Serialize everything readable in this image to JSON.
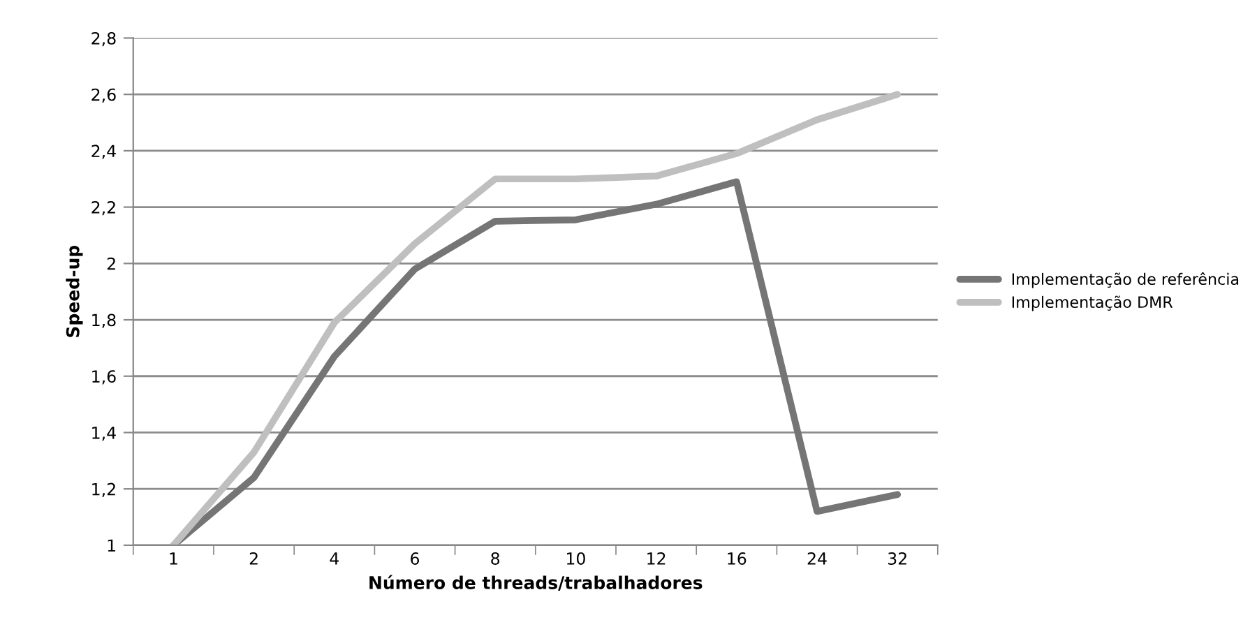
{
  "chart_data": {
    "type": "line",
    "xlabel": "Número de threads/trabalhadores",
    "ylabel": "Speed-up",
    "categories": [
      "1",
      "2",
      "4",
      "6",
      "8",
      "10",
      "12",
      "16",
      "24",
      "32"
    ],
    "series": [
      {
        "name": "Implementação de referência",
        "color": "#757575",
        "values": [
          1,
          1.24,
          1.67,
          1.98,
          2.15,
          2.155,
          2.21,
          2.29,
          1.12,
          1.18
        ]
      },
      {
        "name": "Implementação DMR",
        "color": "#bfbfbf",
        "values": [
          1,
          1.33,
          1.79,
          2.07,
          2.3,
          2.3,
          2.31,
          2.39,
          2.51,
          2.6
        ]
      }
    ],
    "ylim": [
      1,
      2.8
    ],
    "yticks": [
      1,
      {
        "value": 1.2,
        "label": "1,2"
      },
      {
        "value": 1.4,
        "label": "1,4"
      },
      {
        "value": 1.6,
        "label": "1,6"
      },
      {
        "value": 1.8,
        "label": "1,8"
      },
      2,
      {
        "value": 2.2,
        "label": "2,2"
      },
      {
        "value": 2.4,
        "label": "2,4"
      },
      {
        "value": 2.6,
        "label": "2,6"
      },
      {
        "value": 2.8,
        "label": "2,8"
      }
    ],
    "grid": "y",
    "legend": "right",
    "marker": "none",
    "line_style": "solid"
  }
}
